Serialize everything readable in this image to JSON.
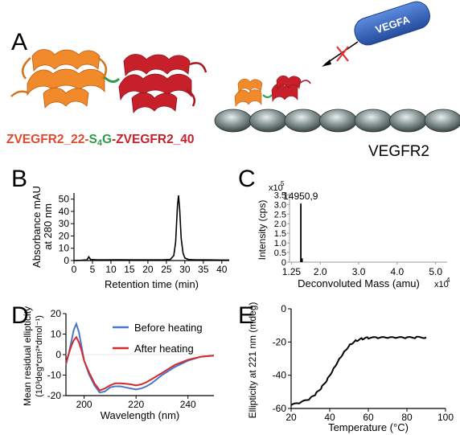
{
  "panel_letters": {
    "a": "A",
    "b": "B",
    "c": "C",
    "d": "D",
    "e": "E"
  },
  "panel_a": {
    "construct": {
      "part1": "ZVEGFR2_22-",
      "linker_s": "S",
      "linker_sub": "4",
      "linker_g": "G",
      "part2": "-ZVEGFR2_40"
    },
    "ligand_label": "VEGFA",
    "receptor_label": "VEGFR2",
    "receptor_segments": 7,
    "colors": {
      "z22": "#f08a2a",
      "z40": "#c8202a",
      "linker": "#2e9b4a",
      "vegfa": "#2f5fb3"
    }
  },
  "chart_data": [
    {
      "panel": "B",
      "type": "line",
      "xlabel": "Retention time (min)",
      "ylabel": "Absorbance mAU at 280 nm",
      "ylabel_lines": [
        "Absorbance mAU",
        "at 280 nm"
      ],
      "xlim": [
        0,
        42
      ],
      "ylim": [
        0,
        55
      ],
      "xticks": [
        0,
        5,
        10,
        15,
        20,
        25,
        30,
        35,
        40
      ],
      "yticks": [
        0,
        10,
        20,
        30,
        40,
        50
      ],
      "grid": false,
      "series": [
        {
          "x": [
            0,
            2,
            3.5,
            4,
            4.5,
            6,
            8,
            12,
            16,
            20,
            24,
            26,
            27,
            27.5,
            28,
            28.3,
            28.6,
            29,
            29.5,
            30,
            31,
            33,
            36,
            40,
            42
          ],
          "y": [
            0,
            0.2,
            0.5,
            3,
            0.8,
            0.6,
            0.5,
            0.6,
            0.5,
            0.5,
            0.5,
            0.8,
            4,
            15,
            45,
            53,
            42,
            18,
            6,
            2,
            0.8,
            0.5,
            0.5,
            0.4,
            0.4
          ]
        }
      ]
    },
    {
      "panel": "C",
      "type": "bar",
      "xlabel": "Deconvoluted Mass (amu)",
      "x_multiplier": "x10",
      "x_multiplier_exp": "4",
      "ylabel": "Intensity (cps)",
      "y_multiplier": "x10",
      "y_multiplier_exp": "5",
      "xlim": [
        1.2,
        5.3
      ],
      "ylim": [
        0,
        3.6
      ],
      "xticks": [
        1.25,
        2.0,
        3.0,
        4.0,
        5.0
      ],
      "xtick_labels": [
        "1.25",
        "2.0",
        "3.0",
        "4.0",
        "5.0"
      ],
      "yticks": [
        0,
        0.5,
        1.0,
        1.5,
        2.0,
        2.5,
        3.0,
        3.5
      ],
      "ytick_labels": [
        "0",
        "0.5",
        "1.0",
        "1.5",
        "2.0",
        "2.5",
        "3.0",
        "3.5"
      ],
      "peaks": [
        {
          "x": 1.4951,
          "y": 3.05,
          "label": "14950,9"
        },
        {
          "x": 1.53,
          "y": 0.2
        }
      ]
    },
    {
      "panel": "D",
      "type": "line",
      "xlabel": "Wavelength (nm)",
      "ylabel_lines": [
        "Mean residual ellipticity",
        "(10³deg*cm²*dmol⁻¹)"
      ],
      "xlim": [
        193,
        250
      ],
      "ylim": [
        -20,
        20
      ],
      "xticks": [
        200,
        220,
        240
      ],
      "yticks": [
        -20,
        -10,
        0,
        10,
        20
      ],
      "legend_position": "top-right",
      "series": [
        {
          "name": "Before heating",
          "color": "#4a78c8",
          "x": [
            193,
            194,
            195,
            196,
            197,
            198,
            199,
            200,
            202,
            204,
            206,
            208,
            210,
            212,
            214,
            216,
            218,
            220,
            222,
            224,
            226,
            228,
            230,
            235,
            240,
            245,
            250
          ],
          "y": [
            -5,
            0,
            6,
            12,
            15,
            11,
            4,
            -3,
            -10,
            -15,
            -18.5,
            -18,
            -16,
            -15.5,
            -15.5,
            -16,
            -16.5,
            -17,
            -16.5,
            -15.5,
            -14,
            -12,
            -10,
            -6,
            -3,
            -1,
            -0.5
          ]
        },
        {
          "name": "After heating",
          "color": "#d62a2a",
          "x": [
            193,
            194,
            195,
            196,
            197,
            198,
            199,
            200,
            202,
            204,
            206,
            208,
            210,
            212,
            214,
            216,
            218,
            220,
            222,
            224,
            226,
            228,
            230,
            235,
            240,
            245,
            250
          ],
          "y": [
            -4,
            0,
            4,
            7,
            8.5,
            6,
            2,
            -3,
            -9,
            -14,
            -17.5,
            -16.5,
            -15,
            -14,
            -14,
            -14.2,
            -14.5,
            -15,
            -14.5,
            -13.5,
            -12,
            -10.5,
            -9,
            -5,
            -2.5,
            -1,
            -0.5
          ]
        }
      ]
    },
    {
      "panel": "E",
      "type": "line",
      "xlabel": "Temperature (°C)",
      "ylabel": "Ellipticity at 221 nm (mdeg)",
      "xlim": [
        20,
        100
      ],
      "ylim": [
        -60,
        0
      ],
      "xticks": [
        20,
        40,
        60,
        80,
        100
      ],
      "yticks": [
        -60,
        -40,
        -20,
        0
      ],
      "series": [
        {
          "x": [
            20,
            25,
            30,
            33,
            36,
            39,
            42,
            45,
            48,
            51,
            54,
            57,
            60,
            65,
            70,
            75,
            80,
            85,
            90
          ],
          "y": [
            -58,
            -56.5,
            -54,
            -51,
            -47,
            -42,
            -36,
            -30,
            -25,
            -21,
            -19,
            -18,
            -17.5,
            -17.5,
            -17.5,
            -17.5,
            -17.5,
            -17.3,
            -17.2
          ]
        }
      ]
    }
  ]
}
